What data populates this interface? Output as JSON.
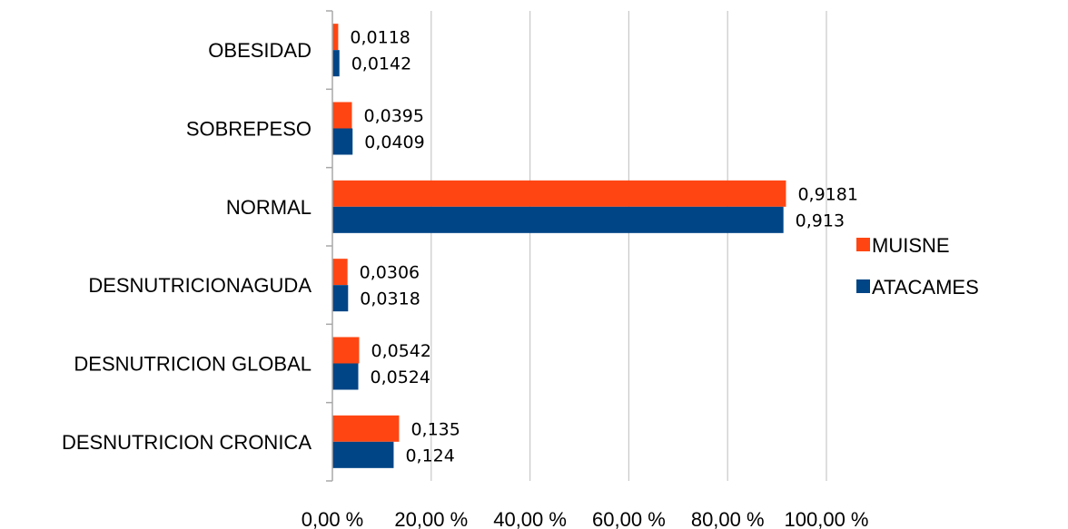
{
  "chart_data": {
    "type": "bar",
    "orientation": "horizontal",
    "title": "",
    "xlabel": "",
    "ylabel": "",
    "categories": [
      "OBESIDAD",
      "SOBREPESO",
      "NORMAL",
      "DESNUTRICIONAGUDA",
      "DESNUTRICION GLOBAL",
      "DESNUTRICION CRONICA"
    ],
    "series": [
      {
        "name": "MUISNE",
        "color": "#ff4612",
        "values": [
          0.0118,
          0.0395,
          0.9181,
          0.0306,
          0.0542,
          0.135
        ],
        "labels": [
          "0,0118",
          "0,0395",
          "0,9181",
          "0,0306",
          "0,0542",
          "0,135"
        ]
      },
      {
        "name": "ATACAMES",
        "color": "#004586",
        "values": [
          0.0142,
          0.0409,
          0.913,
          0.0318,
          0.0524,
          0.124
        ],
        "labels": [
          "0,0142",
          "0,0409",
          "0,913",
          "0,0318",
          "0,0524",
          "0,124"
        ]
      }
    ],
    "xlim": [
      0,
      1
    ],
    "x_ticks": [
      0,
      0.2,
      0.4,
      0.6,
      0.8,
      1.0
    ],
    "x_tick_labels": [
      "0,00 %",
      "20,00 %",
      "40,00 %",
      "60,00 %",
      "80,00 %",
      "100,00 %"
    ],
    "grid": "vertical",
    "legend": "right",
    "legend_entries": [
      "MUISNE",
      "ATACAMES"
    ]
  }
}
